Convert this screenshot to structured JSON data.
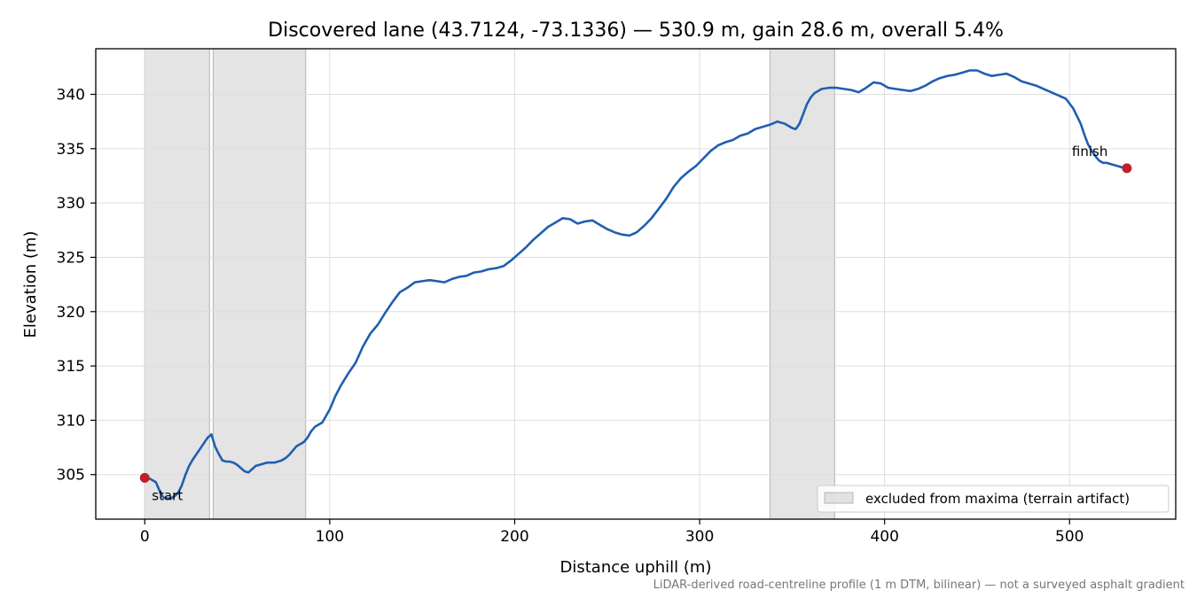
{
  "chart_data": {
    "type": "line",
    "title": "Discovered lane (43.7124, -73.1336) — 530.9 m, gain 28.6 m, overall 5.4%",
    "xlabel": "Distance uphill (m)",
    "ylabel": "Elevation (m)",
    "xlim": [
      -26.5,
      557.4
    ],
    "ylim": [
      300.9,
      344.2
    ],
    "xticks": [
      0,
      100,
      200,
      300,
      400,
      500
    ],
    "yticks": [
      305,
      310,
      315,
      320,
      325,
      330,
      335,
      340
    ],
    "grid": true,
    "legend_position": "lower-right",
    "series": [
      {
        "color": "#1f5fb0",
        "x": [
          0,
          3,
          6,
          8,
          10,
          12,
          14,
          16,
          18,
          20,
          22,
          24,
          26,
          28,
          30,
          32,
          34,
          36,
          38,
          40,
          42,
          44,
          46,
          48,
          50,
          52,
          54,
          56,
          58,
          60,
          62,
          64,
          66,
          68,
          70,
          72,
          74,
          76,
          78,
          80,
          82,
          84,
          86,
          88,
          90,
          92,
          94,
          96,
          98,
          100,
          103,
          106,
          110,
          114,
          118,
          122,
          126,
          130,
          134,
          138,
          142,
          146,
          150,
          154,
          158,
          162,
          166,
          170,
          174,
          178,
          182,
          186,
          190,
          194,
          198,
          202,
          206,
          210,
          214,
          218,
          222,
          226,
          230,
          234,
          238,
          242,
          246,
          250,
          254,
          258,
          262,
          266,
          270,
          274,
          278,
          282,
          286,
          290,
          294,
          298,
          302,
          306,
          310,
          314,
          318,
          322,
          326,
          330,
          334,
          338,
          342,
          346,
          350,
          352,
          354,
          356,
          358,
          360,
          362,
          366,
          370,
          374,
          378,
          382,
          386,
          390,
          394,
          398,
          402,
          406,
          410,
          414,
          418,
          422,
          426,
          430,
          434,
          438,
          442,
          446,
          450,
          454,
          458,
          462,
          466,
          470,
          474,
          478,
          482,
          486,
          490,
          494,
          498,
          502,
          506,
          508,
          510,
          512,
          514,
          516,
          518,
          520,
          522,
          524,
          526,
          528,
          531
        ],
        "y": [
          304.7,
          304.6,
          304.3,
          303.5,
          302.9,
          302.8,
          302.8,
          303.0,
          303.3,
          304.0,
          305.0,
          305.8,
          306.4,
          306.9,
          307.4,
          307.9,
          308.4,
          308.7,
          307.6,
          306.9,
          306.3,
          306.2,
          306.2,
          306.1,
          305.9,
          305.6,
          305.3,
          305.2,
          305.5,
          305.8,
          305.9,
          306.0,
          306.1,
          306.1,
          306.1,
          306.2,
          306.3,
          306.5,
          306.8,
          307.2,
          307.6,
          307.8,
          308.0,
          308.4,
          309.0,
          309.4,
          309.6,
          309.8,
          310.4,
          311.0,
          312.2,
          313.2,
          314.3,
          315.3,
          316.8,
          318.0,
          318.8,
          319.9,
          320.9,
          321.8,
          322.2,
          322.7,
          322.8,
          322.9,
          322.8,
          322.7,
          323.0,
          323.2,
          323.3,
          323.6,
          323.7,
          323.9,
          324.0,
          324.2,
          324.7,
          325.3,
          325.9,
          326.6,
          327.2,
          327.8,
          328.2,
          328.6,
          328.5,
          328.1,
          328.3,
          328.4,
          328.0,
          327.6,
          327.3,
          327.1,
          327.0,
          327.3,
          327.9,
          328.6,
          329.5,
          330.4,
          331.5,
          332.3,
          332.9,
          333.4,
          334.1,
          334.8,
          335.3,
          335.6,
          335.8,
          336.2,
          336.4,
          336.8,
          337.0,
          337.2,
          337.5,
          337.3,
          336.9,
          336.8,
          337.3,
          338.2,
          339.1,
          339.7,
          340.1,
          340.5,
          340.6,
          340.6,
          340.5,
          340.4,
          340.2,
          340.6,
          341.1,
          341.0,
          340.6,
          340.5,
          340.4,
          340.3,
          340.5,
          340.8,
          341.2,
          341.5,
          341.7,
          341.8,
          342.0,
          342.2,
          342.2,
          341.9,
          341.7,
          341.8,
          341.9,
          341.6,
          341.2,
          341.0,
          340.8,
          340.5,
          340.2,
          339.9,
          339.6,
          338.7,
          337.3,
          336.3,
          335.4,
          334.8,
          334.3,
          333.9,
          333.7,
          333.7,
          333.6,
          333.5,
          333.4,
          333.3,
          333.2
        ]
      }
    ],
    "shaded_regions": [
      [
        0,
        35
      ],
      [
        37,
        87
      ],
      [
        338,
        373
      ]
    ],
    "markers": [
      {
        "label": "start",
        "x": 0,
        "y": 304.7
      },
      {
        "label": "finish",
        "x": 531,
        "y": 333.2
      }
    ],
    "legend": {
      "label": "excluded from maxima (terrain artifact)"
    },
    "footnote": "LiDAR-derived road-centreline profile (1 m DTM, bilinear) — not a surveyed asphalt gradient",
    "colors": {
      "line": "#1f5fb0",
      "marker": "#c0202a",
      "shade": "#d6d6d6",
      "grid": "#dddddd"
    }
  }
}
